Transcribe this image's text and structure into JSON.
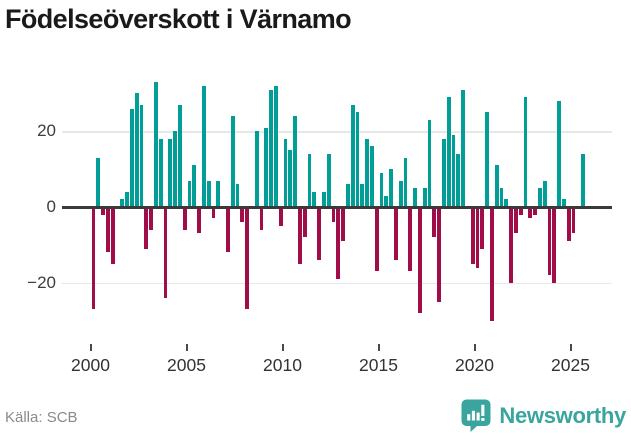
{
  "title": "Födelseöverskott i Värnamo",
  "footer": {
    "source": "Källa: SCB",
    "brand": "Newsworthy"
  },
  "colors": {
    "positive": "#009e96",
    "negative": "#a00d49",
    "axis": "#3a3a3a",
    "grid": "#e7e7e7",
    "brand_teal": "#3aa59e",
    "title_text": "#1a1a1a",
    "tick_text": "#333333",
    "source_text": "#8a8a8a"
  },
  "chart_data": {
    "type": "bar",
    "title": "Födelseöverskott i Värnamo",
    "frequency": "quarterly",
    "start": "2000-Q1",
    "end": "2025-Q3",
    "x_ticks": [
      2000,
      2005,
      2010,
      2015,
      2020,
      2025
    ],
    "y_ticks": [
      20,
      0,
      -20
    ],
    "ylim": [
      -35,
      36
    ],
    "grid": "horizontal",
    "legend": "none",
    "values": [
      -27,
      13,
      -2,
      -12,
      -15,
      0,
      2,
      4,
      26,
      30,
      27,
      -11,
      -6,
      33,
      18,
      -24,
      18,
      20,
      27,
      -6,
      7,
      11,
      -7,
      32,
      7,
      -3,
      7,
      0,
      -12,
      24,
      6,
      -4,
      -27,
      0,
      20,
      -6,
      21,
      31,
      32,
      -5,
      18,
      15,
      24,
      -15,
      -8,
      14,
      4,
      -14,
      4,
      14,
      -4,
      -19,
      -9,
      6,
      27,
      25,
      6,
      18,
      16,
      -17,
      9,
      3,
      10,
      -14,
      7,
      13,
      -17,
      5,
      -28,
      5,
      23,
      -8,
      -25,
      18,
      29,
      19,
      14,
      31,
      0,
      -15,
      -16,
      -11,
      25,
      -30,
      11,
      5,
      2,
      -20,
      -7,
      -2,
      29,
      -3,
      -2,
      5,
      7,
      -18,
      -20,
      28,
      2,
      -9,
      -7,
      0,
      14
    ]
  }
}
